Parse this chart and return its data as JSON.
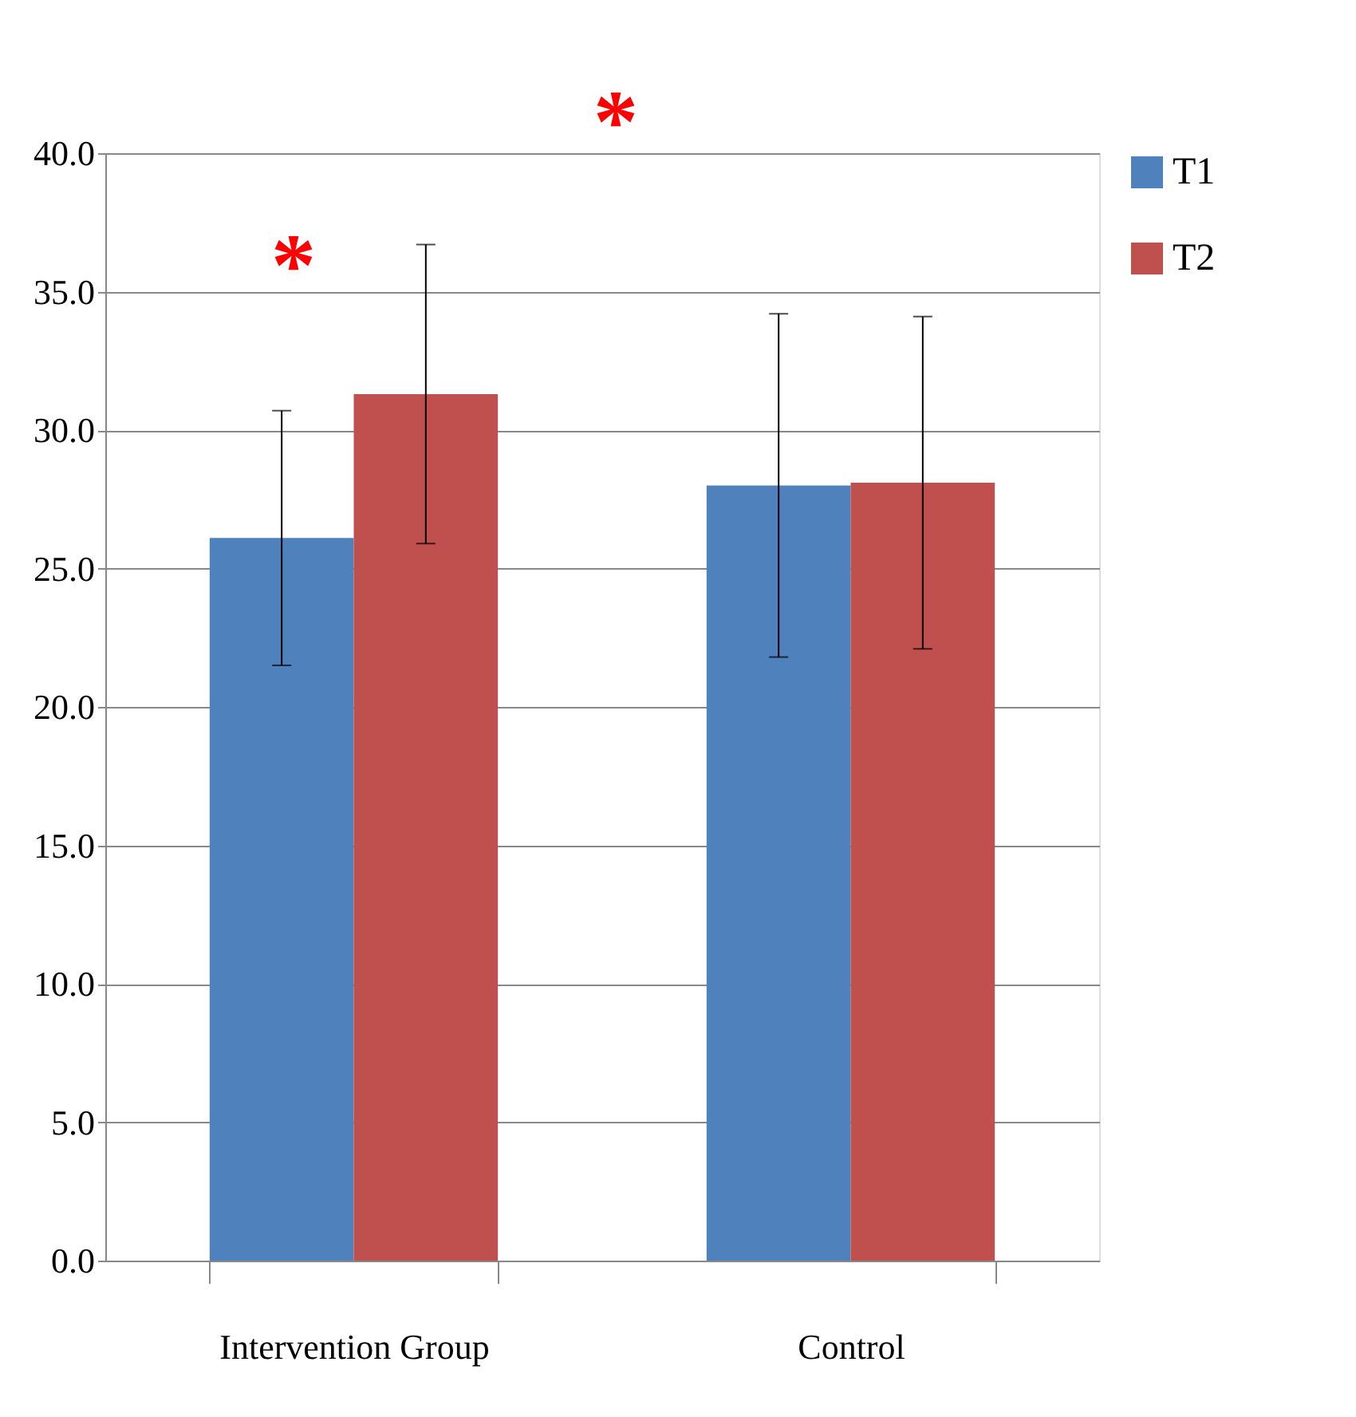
{
  "chart_data": {
    "type": "bar",
    "categories": [
      "Intervention Group",
      "Control"
    ],
    "series": [
      {
        "name": "T1",
        "color": "#4f81bd",
        "values": [
          26.1,
          28.0
        ],
        "errors": [
          4.6,
          6.2
        ]
      },
      {
        "name": "T2",
        "color": "#c0504d",
        "values": [
          31.3,
          28.1
        ],
        "errors": [
          5.4,
          6.0
        ]
      }
    ],
    "ylim": [
      0,
      40
    ],
    "yticks": [
      {
        "value": 0,
        "label": "0.0"
      },
      {
        "value": 5,
        "label": "5.0"
      },
      {
        "value": 10,
        "label": "10.0"
      },
      {
        "value": 15,
        "label": "15.0"
      },
      {
        "value": 20,
        "label": "20.0"
      },
      {
        "value": 25,
        "label": "25.0"
      },
      {
        "value": 30,
        "label": "30.0"
      },
      {
        "value": 35,
        "label": "35.0"
      },
      {
        "value": 40,
        "label": "40.0"
      }
    ],
    "grid": "y",
    "legend": "right",
    "annotations": [
      "*",
      "*"
    ]
  }
}
